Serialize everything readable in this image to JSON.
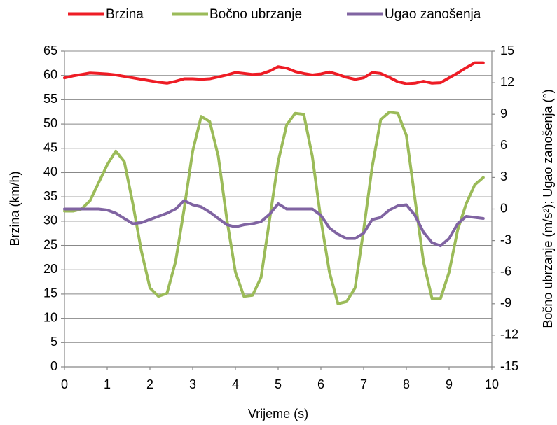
{
  "chart_data": {
    "type": "line",
    "x_label": "Vrijeme (s)",
    "y_label": "Brzina (km/h)",
    "y2_label": "Bočno ubrzanje (m/s²); Ugao zanošenja (°)",
    "x": [
      0,
      0.2,
      0.4,
      0.6,
      0.8,
      1.0,
      1.2,
      1.4,
      1.6,
      1.8,
      2.0,
      2.2,
      2.4,
      2.6,
      2.8,
      3.0,
      3.2,
      3.4,
      3.6,
      3.8,
      4.0,
      4.2,
      4.4,
      4.6,
      4.8,
      5.0,
      5.2,
      5.4,
      5.6,
      5.8,
      6.0,
      6.2,
      6.4,
      6.6,
      6.8,
      7.0,
      7.2,
      7.4,
      7.6,
      7.8,
      8.0,
      8.2,
      8.4,
      8.6,
      8.8,
      9.0,
      9.2,
      9.4,
      9.6,
      9.8
    ],
    "series": [
      {
        "name": "Brzina",
        "color": "#ee1c25",
        "axis": "y",
        "values": [
          59.5,
          59.9,
          60.2,
          60.5,
          60.4,
          60.3,
          60.1,
          59.8,
          59.5,
          59.2,
          58.9,
          58.6,
          58.4,
          58.8,
          59.3,
          59.3,
          59.2,
          59.3,
          59.7,
          60.1,
          60.6,
          60.4,
          60.2,
          60.3,
          60.9,
          61.8,
          61.5,
          60.8,
          60.4,
          60.1,
          60.3,
          60.7,
          60.2,
          59.6,
          59.2,
          59.5,
          60.6,
          60.4,
          59.6,
          58.7,
          58.3,
          58.4,
          58.8,
          58.4,
          58.5,
          59.5,
          60.5,
          61.6,
          62.6,
          62.6
        ]
      },
      {
        "name": "Bočno ubrzanje",
        "color": "#9bbb59",
        "axis": "y2",
        "values": [
          -0.2,
          -0.2,
          0,
          0.8,
          2.5,
          4.2,
          5.5,
          4.5,
          0.5,
          -4,
          -7.5,
          -8.3,
          -8,
          -5,
          0,
          5.5,
          8.8,
          8.3,
          5,
          -1,
          -6,
          -8.3,
          -8.2,
          -6.5,
          -1,
          4.5,
          8,
          9.1,
          9.0,
          5,
          -1,
          -6,
          -9,
          -8.8,
          -7.5,
          -2,
          4,
          8.5,
          9.2,
          9.1,
          7,
          1,
          -5,
          -8.5,
          -8.5,
          -6,
          -2,
          0.5,
          2.3,
          3.0
        ]
      },
      {
        "name": "Ugao zanošenja",
        "color": "#8064a2",
        "axis": "y2",
        "values": [
          0,
          0,
          0,
          0,
          0,
          -0.1,
          -0.4,
          -0.9,
          -1.4,
          -1.3,
          -1.0,
          -0.7,
          -0.4,
          0,
          0.8,
          0.4,
          0.2,
          -0.3,
          -0.9,
          -1.5,
          -1.7,
          -1.5,
          -1.4,
          -1.2,
          -0.5,
          0.5,
          0,
          0,
          0,
          0,
          -0.6,
          -1.8,
          -2.4,
          -2.8,
          -2.8,
          -2.3,
          -1.0,
          -0.8,
          -0.1,
          0.3,
          0.4,
          -0.6,
          -2.2,
          -3.2,
          -3.5,
          -2.8,
          -1.4,
          -0.7,
          -0.8,
          -0.9
        ]
      }
    ],
    "xlim": [
      0,
      10
    ],
    "xticks": [
      0,
      1,
      2,
      3,
      4,
      5,
      6,
      7,
      8,
      9,
      10
    ],
    "ylim": [
      0,
      65
    ],
    "yticks": [
      0,
      5,
      10,
      15,
      20,
      25,
      30,
      35,
      40,
      45,
      50,
      55,
      60,
      65
    ],
    "y2lim": [
      -15,
      15
    ],
    "y2ticks": [
      -15,
      -12,
      -9,
      -6,
      -3,
      0,
      3,
      6,
      9,
      12,
      15
    ],
    "grid": true,
    "legend": "top"
  }
}
